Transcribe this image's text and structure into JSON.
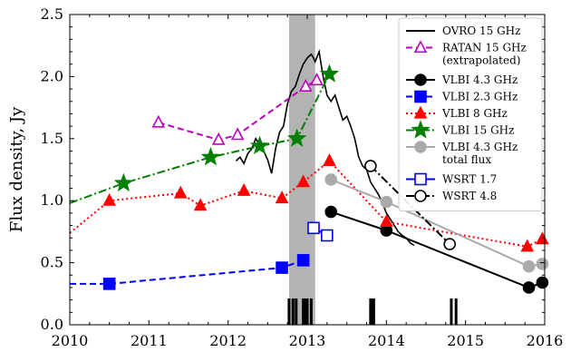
{
  "chart_data": {
    "type": "line",
    "xlabel": "",
    "ylabel": "Flux density, Jy",
    "xlim": [
      2010,
      2016
    ],
    "ylim": [
      0,
      2.5
    ],
    "x_ticks": [
      "2010",
      "2011",
      "2012",
      "2013",
      "2014",
      "2015",
      "2016"
    ],
    "y_ticks": [
      "0.0",
      "0.5",
      "1.0",
      "1.5",
      "2.0",
      "2.5"
    ],
    "grid": false,
    "legend_position": "top-right",
    "shaded_region": [
      2012.77,
      2013.1
    ],
    "shaded_color": "#b3b3b3",
    "epoch_markers": [
      2012.77,
      2012.82,
      2012.86,
      2012.95,
      2012.97,
      2013.0,
      2013.05,
      2013.8,
      2013.82,
      2013.84,
      2014.82,
      2014.88
    ],
    "series": [
      {
        "name": "OVRO 15 GHz",
        "color": "#000000",
        "line": "solid",
        "marker": "none",
        "x": [
          2012.1,
          2012.15,
          2012.2,
          2012.25,
          2012.3,
          2012.35,
          2012.4,
          2012.45,
          2012.5,
          2012.55,
          2012.6,
          2012.65,
          2012.7,
          2012.75,
          2012.8,
          2012.85,
          2012.9,
          2012.95,
          2013.0,
          2013.05,
          2013.08,
          2013.1,
          2013.15,
          2013.2,
          2013.25,
          2013.3,
          2013.35,
          2013.4,
          2013.45,
          2013.5,
          2013.55,
          2013.6,
          2013.65,
          2013.7,
          2013.75,
          2013.8,
          2013.85,
          2013.9,
          2013.95,
          2014.0,
          2014.05,
          2014.1,
          2014.15,
          2014.2,
          2014.25,
          2014.3,
          2014.35
        ],
        "y": [
          1.32,
          1.35,
          1.3,
          1.38,
          1.42,
          1.5,
          1.45,
          1.4,
          1.33,
          1.22,
          1.42,
          1.55,
          1.6,
          1.78,
          1.88,
          1.92,
          2.02,
          2.1,
          2.15,
          2.18,
          2.15,
          2.12,
          2.2,
          2.0,
          1.85,
          1.8,
          1.85,
          1.75,
          1.65,
          1.68,
          1.6,
          1.5,
          1.35,
          1.28,
          1.25,
          1.15,
          1.1,
          1.05,
          0.98,
          0.9,
          0.85,
          0.8,
          0.75,
          0.72,
          0.7,
          0.66,
          0.64
        ]
      },
      {
        "name": "RATAN 15 GHz\n(extrapolated)",
        "color": "#bf00bf",
        "line": "dashed",
        "marker": "triangle-open",
        "x": [
          2011.12,
          2011.88,
          2012.12,
          2012.98,
          2013.12
        ],
        "y": [
          1.63,
          1.49,
          1.53,
          1.92,
          1.97
        ]
      },
      {
        "name": "VLBI 4.3 GHz",
        "color": "#000000",
        "line": "solid",
        "marker": "circle-filled",
        "x": [
          2013.3,
          2014.0,
          2015.8,
          2015.97
        ],
        "y": [
          0.91,
          0.76,
          0.3,
          0.34
        ]
      },
      {
        "name": "VLBI 2.3 GHz",
        "color": "#0000ff",
        "line": "dashed",
        "marker": "square-filled",
        "x": [
          2010.0,
          2010.5,
          2012.68,
          2012.95
        ],
        "y": [
          0.33,
          0.33,
          0.46,
          0.52
        ]
      },
      {
        "name": "VLBI 8 GHz",
        "color": "#ff0000",
        "line": "dotted",
        "marker": "triangle-filled",
        "x": [
          2010.0,
          2010.5,
          2011.4,
          2011.65,
          2012.2,
          2012.68,
          2012.95,
          2013.28,
          2014.0,
          2015.78,
          2015.97
        ],
        "y": [
          0.74,
          1.0,
          1.06,
          0.96,
          1.08,
          1.02,
          1.15,
          1.32,
          0.83,
          0.63,
          0.69
        ]
      },
      {
        "name": "VLBI 15 GHz",
        "color": "#008000",
        "line": "dashdot",
        "marker": "star-filled",
        "x": [
          2010.0,
          2010.68,
          2011.78,
          2012.4,
          2012.87,
          2013.28
        ],
        "y": [
          0.98,
          1.14,
          1.35,
          1.44,
          1.5,
          2.02
        ]
      },
      {
        "name": "VLBI 4.3 GHz\ntotal flux",
        "color": "#aaaaaa",
        "line": "solid",
        "marker": "circle-filled",
        "x": [
          2013.3,
          2014.0,
          2015.8,
          2015.97
        ],
        "y": [
          1.17,
          0.99,
          0.47,
          0.49
        ]
      },
      {
        "name": "WSRT 1.7",
        "color": "#0000ff",
        "line": "solid",
        "marker": "square-open",
        "x": [
          2013.08,
          2013.25
        ],
        "y": [
          0.78,
          0.72
        ]
      },
      {
        "name": "WSRT 4.8",
        "color": "#000000",
        "line": "dashdot",
        "marker": "circle-open",
        "x": [
          2013.8,
          2014.8
        ],
        "y": [
          1.28,
          0.65
        ]
      }
    ]
  }
}
